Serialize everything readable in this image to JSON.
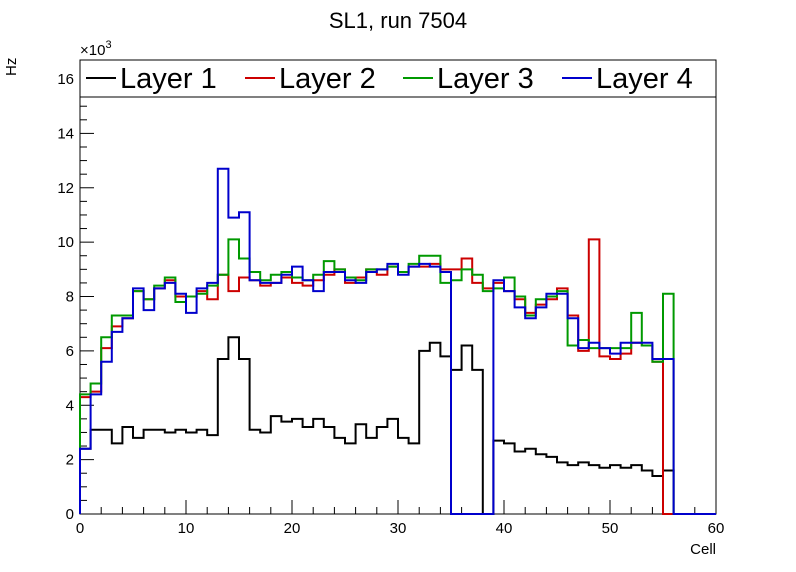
{
  "chart_data": {
    "type": "histogram-step",
    "title": "SL1, run 7504",
    "xlabel": "Cell",
    "ylabel": "Hz",
    "y_exponent_label": "×10",
    "y_exponent_power": "3",
    "xlim": [
      0,
      60
    ],
    "ylim": [
      0,
      16.7
    ],
    "y_scale_note": "values in units of 10^3 Hz",
    "x_ticks": [
      0,
      10,
      20,
      30,
      40,
      50,
      60
    ],
    "y_ticks": [
      0,
      2,
      4,
      6,
      8,
      10,
      12,
      14,
      16
    ],
    "grid": false,
    "legend_placement": "top",
    "bin_width": 1,
    "bin_edges_start": 0,
    "series": [
      {
        "name": "Layer 1",
        "color": "#000000",
        "values": [
          2.4,
          3.1,
          3.1,
          2.6,
          3.2,
          2.8,
          3.1,
          3.1,
          3.0,
          3.1,
          3.0,
          3.1,
          2.9,
          5.7,
          6.5,
          5.7,
          3.1,
          3.0,
          3.6,
          3.4,
          3.5,
          3.2,
          3.5,
          3.2,
          2.8,
          2.6,
          3.3,
          2.8,
          3.2,
          3.5,
          2.8,
          2.6,
          6.0,
          6.3,
          5.8,
          5.3,
          6.2,
          5.3,
          0.0,
          2.7,
          2.6,
          2.3,
          2.4,
          2.2,
          2.1,
          1.9,
          1.8,
          1.9,
          1.8,
          1.7,
          1.8,
          1.7,
          1.8,
          1.6,
          1.4,
          1.6,
          0.0,
          0.0,
          0.0,
          0.0
        ]
      },
      {
        "name": "Layer 2",
        "color": "#cc0000",
        "values": [
          4.3,
          4.5,
          6.1,
          6.9,
          7.2,
          8.2,
          7.9,
          8.3,
          8.6,
          8.0,
          8.0,
          8.2,
          7.9,
          8.8,
          8.2,
          8.7,
          8.6,
          8.4,
          8.5,
          8.7,
          8.5,
          8.4,
          8.6,
          8.8,
          9.0,
          8.5,
          8.7,
          9.0,
          8.8,
          9.1,
          8.9,
          9.1,
          9.1,
          9.2,
          9.0,
          9.0,
          9.4,
          8.5,
          8.3,
          8.5,
          8.2,
          7.9,
          7.4,
          7.7,
          7.9,
          8.3,
          7.3,
          6.0,
          10.1,
          5.8,
          5.7,
          5.9,
          6.3,
          6.2,
          5.6,
          0.0,
          0.0,
          0.0,
          0.0,
          0.0
        ]
      },
      {
        "name": "Layer 3",
        "color": "#009900",
        "values": [
          4.4,
          4.8,
          6.5,
          7.3,
          7.3,
          8.2,
          7.9,
          8.4,
          8.7,
          7.8,
          8.0,
          8.1,
          8.4,
          8.8,
          10.1,
          9.4,
          8.9,
          8.6,
          8.8,
          8.9,
          8.7,
          8.6,
          8.8,
          9.3,
          9.0,
          8.7,
          8.6,
          9.0,
          9.0,
          9.1,
          8.9,
          9.2,
          9.5,
          9.5,
          8.5,
          8.6,
          9.0,
          8.8,
          8.2,
          8.3,
          8.7,
          8.0,
          7.3,
          7.9,
          8.0,
          8.2,
          6.2,
          6.4,
          6.1,
          6.1,
          6.1,
          6.1,
          7.4,
          6.2,
          5.6,
          8.1,
          0.0,
          0.0,
          0.0,
          0.0
        ]
      },
      {
        "name": "Layer 4",
        "color": "#0000cc",
        "values": [
          2.4,
          4.4,
          5.6,
          6.7,
          7.2,
          8.3,
          7.5,
          8.3,
          8.5,
          8.1,
          7.4,
          8.3,
          8.5,
          12.7,
          10.9,
          11.1,
          8.6,
          8.5,
          8.5,
          8.8,
          9.1,
          8.6,
          8.2,
          8.9,
          8.9,
          8.6,
          8.5,
          8.9,
          9.0,
          9.2,
          8.8,
          9.1,
          9.2,
          9.1,
          8.9,
          0.0,
          0.0,
          0.0,
          0.0,
          8.6,
          8.2,
          7.6,
          7.2,
          7.6,
          8.1,
          8.1,
          7.2,
          6.1,
          6.3,
          6.1,
          5.9,
          6.3,
          6.3,
          6.3,
          5.7,
          5.7,
          0.0,
          0.0,
          0.0,
          0.0
        ]
      }
    ]
  }
}
